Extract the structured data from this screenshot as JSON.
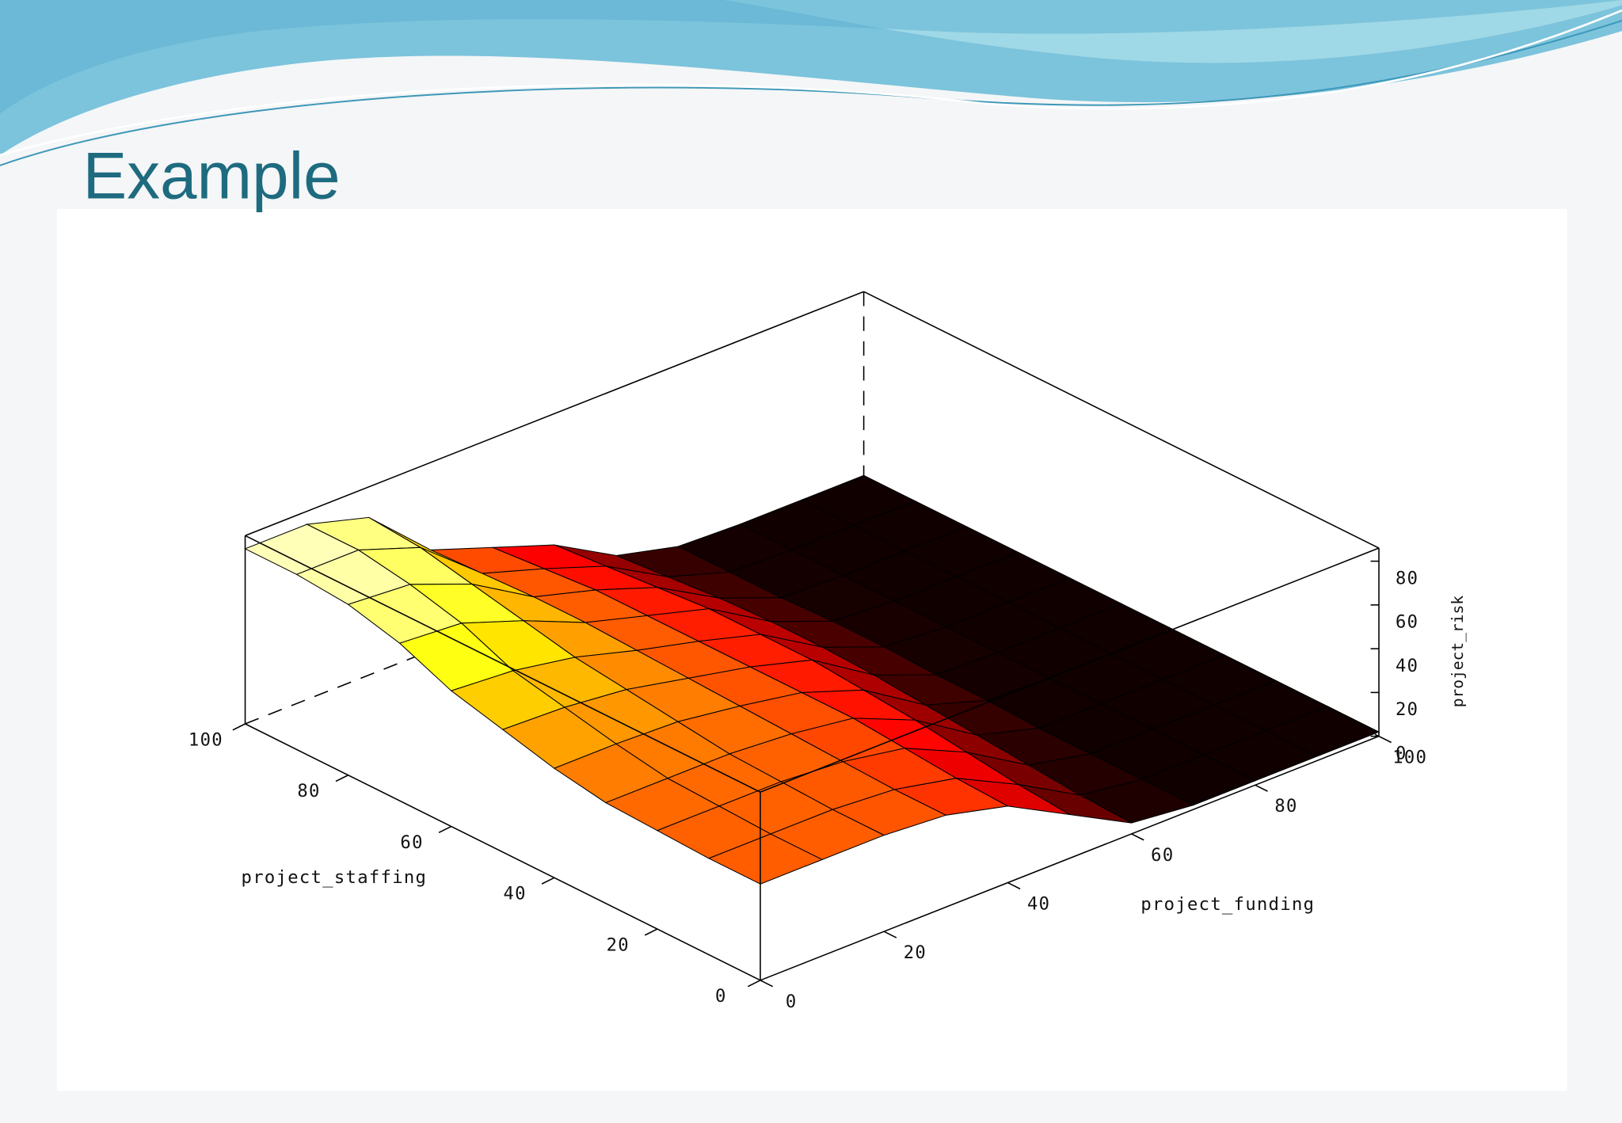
{
  "chart_data": {
    "type": "surface",
    "title": "Example",
    "xlabel": "project_funding",
    "ylabel": "project_staffing",
    "zlabel": "project_risk",
    "x": [
      0,
      10,
      20,
      30,
      40,
      50,
      60,
      70,
      80,
      90,
      100
    ],
    "y": [
      0,
      10,
      20,
      30,
      40,
      50,
      60,
      70,
      80,
      90,
      100
    ],
    "z": [
      [
        44,
        44,
        44,
        42,
        35,
        20,
        5,
        2,
        2,
        2,
        2
      ],
      [
        44,
        44,
        44,
        42,
        36,
        22,
        6,
        2,
        2,
        2,
        2
      ],
      [
        45,
        45,
        45,
        43,
        38,
        25,
        8,
        2,
        2,
        2,
        2
      ],
      [
        46,
        46,
        46,
        44,
        40,
        28,
        10,
        2,
        2,
        2,
        2
      ],
      [
        50,
        50,
        49,
        45,
        40,
        30,
        12,
        3,
        2,
        2,
        2
      ],
      [
        56,
        55,
        52,
        46,
        40,
        32,
        14,
        3,
        2,
        2,
        2
      ],
      [
        62,
        60,
        55,
        47,
        40,
        32,
        15,
        4,
        2,
        2,
        2
      ],
      [
        72,
        70,
        60,
        48,
        40,
        32,
        15,
        4,
        2,
        2,
        2
      ],
      [
        78,
        76,
        65,
        48,
        40,
        30,
        14,
        3,
        2,
        2,
        2
      ],
      [
        80,
        80,
        70,
        47,
        38,
        28,
        12,
        3,
        2,
        2,
        2
      ],
      [
        80,
        80,
        72,
        46,
        36,
        26,
        10,
        3,
        2,
        2,
        2
      ]
    ],
    "colormap": "hot",
    "xlim": [
      0,
      100
    ],
    "xticks": [
      0,
      20,
      40,
      60,
      80,
      100
    ],
    "ylim": [
      0,
      100
    ],
    "yticks": [
      0,
      20,
      40,
      60,
      80,
      100
    ],
    "zlim": [
      0,
      86
    ],
    "zticks": [
      0,
      20,
      40,
      60,
      80
    ]
  }
}
